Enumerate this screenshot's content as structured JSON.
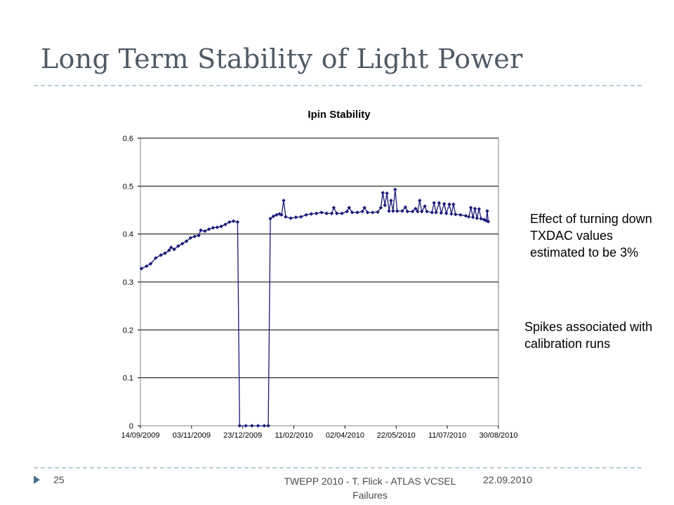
{
  "slide": {
    "title": "Long Term Stability of Light Power",
    "notes": [
      "Effect of turning down TXDAC values estimated to be 3%",
      "Spikes associated with calibration runs"
    ],
    "footer": {
      "page": "25",
      "talk_line1": "TWEPP 2010 - T. Flick - ATLAS VCSEL",
      "talk_line2": "Failures",
      "date": "22.09.2010"
    },
    "accent_color": "#4b6f8f",
    "title_color": "#4f5a66"
  },
  "chart_data": {
    "type": "line",
    "title": "Ipin Stability",
    "xlabel": "",
    "ylabel": "",
    "x_tick_labels": [
      "14/09/2009",
      "03/11/2009",
      "23/12/2009",
      "11/02/2010",
      "02/04/2010",
      "22/05/2010",
      "11/07/2010",
      "30/08/2010"
    ],
    "y_tick_labels": [
      "0",
      "0.1",
      "0.2",
      "0.3",
      "0.4",
      "0.5",
      "0.6"
    ],
    "xlim": [
      "2009-09-14",
      "2010-08-30"
    ],
    "ylim": [
      0,
      0.6
    ],
    "grid": "horizontal",
    "legend": "none",
    "marker": "diamond",
    "line_color": "#1a1a7a",
    "series": [
      {
        "points": [
          [
            "2009-09-15",
            0.328
          ],
          [
            "2009-09-20",
            0.333
          ],
          [
            "2009-09-24",
            0.338
          ],
          [
            "2009-09-29",
            0.35
          ],
          [
            "2009-10-04",
            0.356
          ],
          [
            "2009-10-08",
            0.36
          ],
          [
            "2009-10-12",
            0.366
          ],
          [
            "2009-10-14",
            0.372
          ],
          [
            "2009-10-17",
            0.368
          ],
          [
            "2009-10-21",
            0.375
          ],
          [
            "2009-10-25",
            0.38
          ],
          [
            "2009-10-29",
            0.385
          ],
          [
            "2009-11-02",
            0.392
          ],
          [
            "2009-11-06",
            0.395
          ],
          [
            "2009-11-10",
            0.397
          ],
          [
            "2009-11-12",
            0.408
          ],
          [
            "2009-11-16",
            0.406
          ],
          [
            "2009-11-20",
            0.41
          ],
          [
            "2009-11-24",
            0.413
          ],
          [
            "2009-11-28",
            0.414
          ],
          [
            "2009-12-02",
            0.416
          ],
          [
            "2009-12-06",
            0.42
          ],
          [
            "2009-12-10",
            0.425
          ],
          [
            "2009-12-14",
            0.427
          ],
          [
            "2009-12-18",
            0.425
          ],
          [
            "2009-12-20",
            0.0
          ],
          [
            "2009-12-26",
            0.0
          ],
          [
            "2010-01-01",
            0.0
          ],
          [
            "2010-01-07",
            0.0
          ],
          [
            "2010-01-13",
            0.0
          ],
          [
            "2010-01-17",
            0.0
          ],
          [
            "2010-01-19",
            0.432
          ],
          [
            "2010-01-22",
            0.437
          ],
          [
            "2010-01-25",
            0.44
          ],
          [
            "2010-01-28",
            0.442
          ],
          [
            "2010-01-30",
            0.44
          ],
          [
            "2010-02-01",
            0.47
          ],
          [
            "2010-02-03",
            0.436
          ],
          [
            "2010-02-08",
            0.433
          ],
          [
            "2010-02-13",
            0.435
          ],
          [
            "2010-02-18",
            0.436
          ],
          [
            "2010-02-23",
            0.44
          ],
          [
            "2010-02-28",
            0.442
          ],
          [
            "2010-03-05",
            0.443
          ],
          [
            "2010-03-10",
            0.445
          ],
          [
            "2010-03-15",
            0.443
          ],
          [
            "2010-03-20",
            0.443
          ],
          [
            "2010-03-22",
            0.455
          ],
          [
            "2010-03-25",
            0.443
          ],
          [
            "2010-03-30",
            0.443
          ],
          [
            "2010-04-04",
            0.447
          ],
          [
            "2010-04-06",
            0.455
          ],
          [
            "2010-04-09",
            0.445
          ],
          [
            "2010-04-14",
            0.445
          ],
          [
            "2010-04-19",
            0.447
          ],
          [
            "2010-04-21",
            0.455
          ],
          [
            "2010-04-24",
            0.445
          ],
          [
            "2010-04-29",
            0.445
          ],
          [
            "2010-05-04",
            0.446
          ],
          [
            "2010-05-07",
            0.455
          ],
          [
            "2010-05-09",
            0.486
          ],
          [
            "2010-05-11",
            0.46
          ],
          [
            "2010-05-13",
            0.485
          ],
          [
            "2010-05-15",
            0.448
          ],
          [
            "2010-05-17",
            0.47
          ],
          [
            "2010-05-19",
            0.448
          ],
          [
            "2010-05-21",
            0.493
          ],
          [
            "2010-05-23",
            0.448
          ],
          [
            "2010-05-28",
            0.448
          ],
          [
            "2010-05-31",
            0.456
          ],
          [
            "2010-06-02",
            0.447
          ],
          [
            "2010-06-07",
            0.447
          ],
          [
            "2010-06-10",
            0.453
          ],
          [
            "2010-06-12",
            0.447
          ],
          [
            "2010-06-14",
            0.47
          ],
          [
            "2010-06-16",
            0.447
          ],
          [
            "2010-06-19",
            0.458
          ],
          [
            "2010-06-21",
            0.447
          ],
          [
            "2010-06-26",
            0.445
          ],
          [
            "2010-06-28",
            0.465
          ],
          [
            "2010-06-30",
            0.445
          ],
          [
            "2010-07-03",
            0.465
          ],
          [
            "2010-07-05",
            0.444
          ],
          [
            "2010-07-08",
            0.463
          ],
          [
            "2010-07-10",
            0.443
          ],
          [
            "2010-07-13",
            0.462
          ],
          [
            "2010-07-15",
            0.442
          ],
          [
            "2010-07-17",
            0.462
          ],
          [
            "2010-07-19",
            0.441
          ],
          [
            "2010-07-24",
            0.44
          ],
          [
            "2010-07-29",
            0.438
          ],
          [
            "2010-08-01",
            0.436
          ],
          [
            "2010-08-03",
            0.455
          ],
          [
            "2010-08-05",
            0.435
          ],
          [
            "2010-08-07",
            0.453
          ],
          [
            "2010-08-09",
            0.433
          ],
          [
            "2010-08-11",
            0.452
          ],
          [
            "2010-08-13",
            0.432
          ],
          [
            "2010-08-16",
            0.43
          ],
          [
            "2010-08-18",
            0.428
          ],
          [
            "2010-08-19",
            0.448
          ],
          [
            "2010-08-20",
            0.426
          ]
        ]
      }
    ]
  }
}
